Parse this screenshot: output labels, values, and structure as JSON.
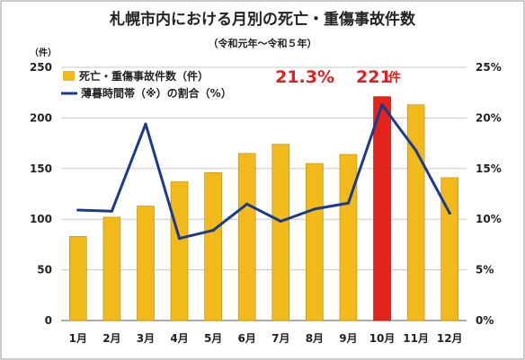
{
  "chart_data": {
    "type": "bar",
    "title": "札幌市内における月別の死亡・重傷事故件数",
    "subtitle": "（令和元年～令和５年）",
    "y_left_unit": "（件）",
    "categories": [
      "1月",
      "2月",
      "3月",
      "4月",
      "5月",
      "6月",
      "7月",
      "8月",
      "9月",
      "10月",
      "11月",
      "12月"
    ],
    "y_left_ticks": [
      "0",
      "50",
      "100",
      "150",
      "200",
      "250"
    ],
    "y_right_ticks": [
      "0%",
      "5%",
      "10%",
      "15%",
      "20%",
      "25%"
    ],
    "ylim_left": [
      0,
      250
    ],
    "ylim_right": [
      0,
      25
    ],
    "grid": true,
    "legend_position": "top-left",
    "series": [
      {
        "name": "死亡・重傷事故件数（件）",
        "type": "bar",
        "axis": "left",
        "values": [
          83,
          102,
          113,
          137,
          146,
          165,
          174,
          155,
          164,
          221,
          213,
          141
        ]
      },
      {
        "name": "薄暮時間帯（※）の割合（%）",
        "type": "line",
        "axis": "right",
        "values": [
          10.9,
          10.8,
          19.4,
          8.1,
          8.9,
          11.5,
          9.8,
          11.0,
          11.6,
          21.3,
          16.8,
          10.6
        ]
      }
    ],
    "highlight": {
      "index": 9,
      "bar_label_value": "221",
      "bar_label_unit": "件",
      "line_label": "21.3%"
    },
    "colors": {
      "bar": "#f2b91a",
      "bar_edge": "#b98a10",
      "bar_highlight": "#e3241b",
      "line": "#1b3a8c",
      "callout": "#e02020",
      "grid": "#c8c8c8"
    }
  }
}
